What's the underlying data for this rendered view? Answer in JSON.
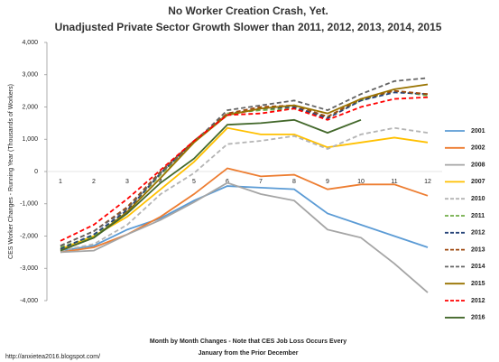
{
  "chart_data": {
    "type": "line",
    "title": "No Worker Creation Crash, Yet.",
    "subtitle": "Unadjusted Private Sector Growth Slower than 2011, 2012, 2013, 2014, 2015",
    "y_label": "CES Worker Changes - Running Year (Thousands of Workers)",
    "x_label": "Month by Month Changes - Note that CES Job Loss Occurs Every",
    "x_label_2": "January from the Prior December",
    "source": "http://anxietea2016.blogspot.com/",
    "categories": [
      "1",
      "2",
      "3",
      "4",
      "5",
      "6",
      "7",
      "8",
      "9",
      "10",
      "11",
      "12"
    ],
    "ylim": [
      -4000,
      4000
    ],
    "yticks": [
      {
        "value": -4000,
        "label": "-4,000"
      },
      {
        "value": -3000,
        "label": "-3,000"
      },
      {
        "value": -2000,
        "label": "-2,000"
      },
      {
        "value": -1000,
        "label": "-1,000"
      },
      0,
      {
        "value": 1000,
        "label": "1,000"
      },
      {
        "value": 2000,
        "label": "2,000"
      },
      {
        "value": 3000,
        "label": "3,000"
      },
      {
        "value": 4000,
        "label": "4,000"
      }
    ],
    "legend": "right",
    "series": [
      {
        "name": "2001",
        "color": "#5b9bd5",
        "dashed": false,
        "values": [
          -2450,
          -2300,
          -1800,
          -1450,
          -900,
          -450,
          -500,
          -550,
          -1300,
          -1650,
          -2000,
          -2350
        ]
      },
      {
        "name": "2002",
        "color": "#ed7d31",
        "dashed": false,
        "values": [
          -2500,
          -2350,
          -1950,
          -1400,
          -700,
          100,
          -150,
          -100,
          -550,
          -400,
          -400,
          -750
        ]
      },
      {
        "name": "2008",
        "color": "#a5a5a5",
        "dashed": false,
        "values": [
          -2500,
          -2450,
          -1950,
          -1500,
          -950,
          -350,
          -700,
          -900,
          -1800,
          -2050,
          -2850,
          -3750
        ]
      },
      {
        "name": "2007",
        "color": "#ffc000",
        "dashed": false,
        "values": [
          -2400,
          -2000,
          -1400,
          -550,
          300,
          1350,
          1150,
          1150,
          750,
          900,
          1050,
          900
        ]
      },
      {
        "name": "2010",
        "color": "#b4b4b4",
        "dashed": true,
        "values": [
          -2450,
          -2250,
          -1650,
          -700,
          -50,
          850,
          950,
          1100,
          700,
          1150,
          1350,
          1200
        ]
      },
      {
        "name": "2011",
        "color": "#70ad47",
        "dashed": true,
        "values": [
          -2350,
          -2000,
          -1200,
          -100,
          900,
          1800,
          1900,
          1950,
          1700,
          2200,
          2500,
          2350
        ]
      },
      {
        "name": "2012",
        "color": "#264478",
        "dashed": true,
        "values": [
          -2400,
          -1950,
          -1200,
          -50,
          950,
          1750,
          1950,
          2000,
          1650,
          2200,
          2450,
          2400
        ]
      },
      {
        "name": "2013",
        "color": "#9e480e",
        "dashed": true,
        "values": [
          -2300,
          -1850,
          -1100,
          0,
          950,
          1800,
          2000,
          2050,
          1700,
          2250,
          2500,
          2400
        ]
      },
      {
        "name": "2014",
        "color": "#636363",
        "dashed": true,
        "values": [
          -2300,
          -1850,
          -1150,
          -50,
          900,
          1900,
          2050,
          2200,
          1900,
          2400,
          2800,
          2900
        ]
      },
      {
        "name": "2015",
        "color": "#997300",
        "dashed": false,
        "values": [
          -2450,
          -2050,
          -1250,
          -200,
          900,
          1750,
          1950,
          2050,
          1800,
          2250,
          2550,
          2700
        ]
      },
      {
        "name": "2012",
        "color": "#ff0000",
        "dashed": true,
        "values": [
          -2150,
          -1650,
          -850,
          50,
          950,
          1750,
          1800,
          1950,
          1600,
          2000,
          2250,
          2300
        ]
      },
      {
        "name": "2016",
        "color": "#43682b",
        "dashed": false,
        "values": [
          -2450,
          -2050,
          -1300,
          -350,
          400,
          1450,
          1500,
          1600,
          1200,
          1600,
          null,
          null
        ]
      }
    ]
  }
}
